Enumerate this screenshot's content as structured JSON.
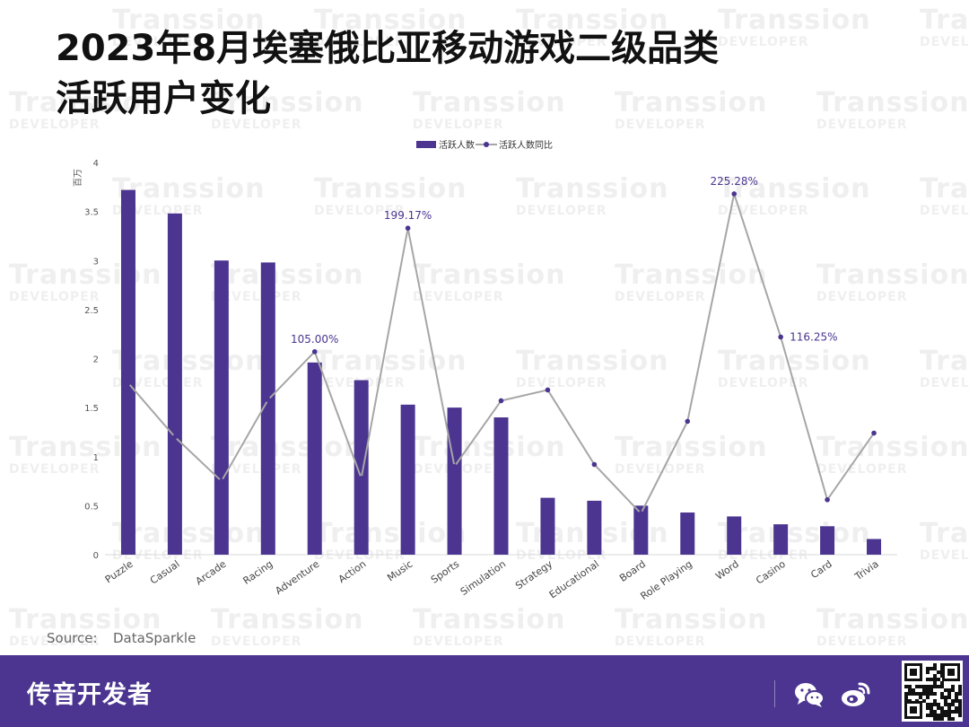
{
  "title_line1": "2023年8月埃塞俄比亚移动游戏二级品类",
  "title_line2": "活跃用户变化",
  "watermark": {
    "line1": "Transsion",
    "line2": "DEVELOPER"
  },
  "source": {
    "label": "Source:",
    "value": "DataSparkle"
  },
  "footer": {
    "brand": "传音开发者",
    "wechat_icon": "wechat-icon",
    "weibo_icon": "weibo-icon",
    "qr_icon": "qr-code"
  },
  "colors": {
    "bar": "#4b3590",
    "line": "#a6a6a6",
    "marker": "#4b3590",
    "label": "#4b3590",
    "footer_bg": "#4b3590"
  },
  "chart_data": {
    "type": "bar",
    "y_unit": "百万",
    "ylim": [
      0,
      4
    ],
    "yticks": [
      "0",
      "0.5",
      "1",
      "1.5",
      "2",
      "2.5",
      "3",
      "3.5",
      "4"
    ],
    "legend_position": "top-center",
    "categories": [
      "Puzzle",
      "Casual",
      "Arcade",
      "Racing",
      "Adventure",
      "Action",
      "Music",
      "Sports",
      "Simulation",
      "Strategy",
      "Educational",
      "Board",
      "Role Playing",
      "Word",
      "Casino",
      "Card",
      "Trivia"
    ],
    "series": [
      {
        "name": "活跃人数",
        "type": "bar",
        "values": [
          3.72,
          3.48,
          3.0,
          2.98,
          1.96,
          1.78,
          1.53,
          1.5,
          1.4,
          0.58,
          0.55,
          0.5,
          0.43,
          0.39,
          0.31,
          0.29,
          0.16
        ]
      },
      {
        "name": "活跃人数同比",
        "type": "line",
        "values": [
          1.75,
          1.2,
          0.75,
          1.58,
          2.07,
          0.78,
          3.33,
          0.9,
          1.57,
          1.68,
          0.92,
          0.42,
          1.36,
          3.68,
          2.22,
          0.56,
          1.24
        ]
      }
    ],
    "data_labels": [
      {
        "category": "Adventure",
        "text": "105.00%"
      },
      {
        "category": "Music",
        "text": "199.17%"
      },
      {
        "category": "Word",
        "text": "225.28%"
      },
      {
        "category": "Casino",
        "text": "116.25%"
      }
    ]
  }
}
